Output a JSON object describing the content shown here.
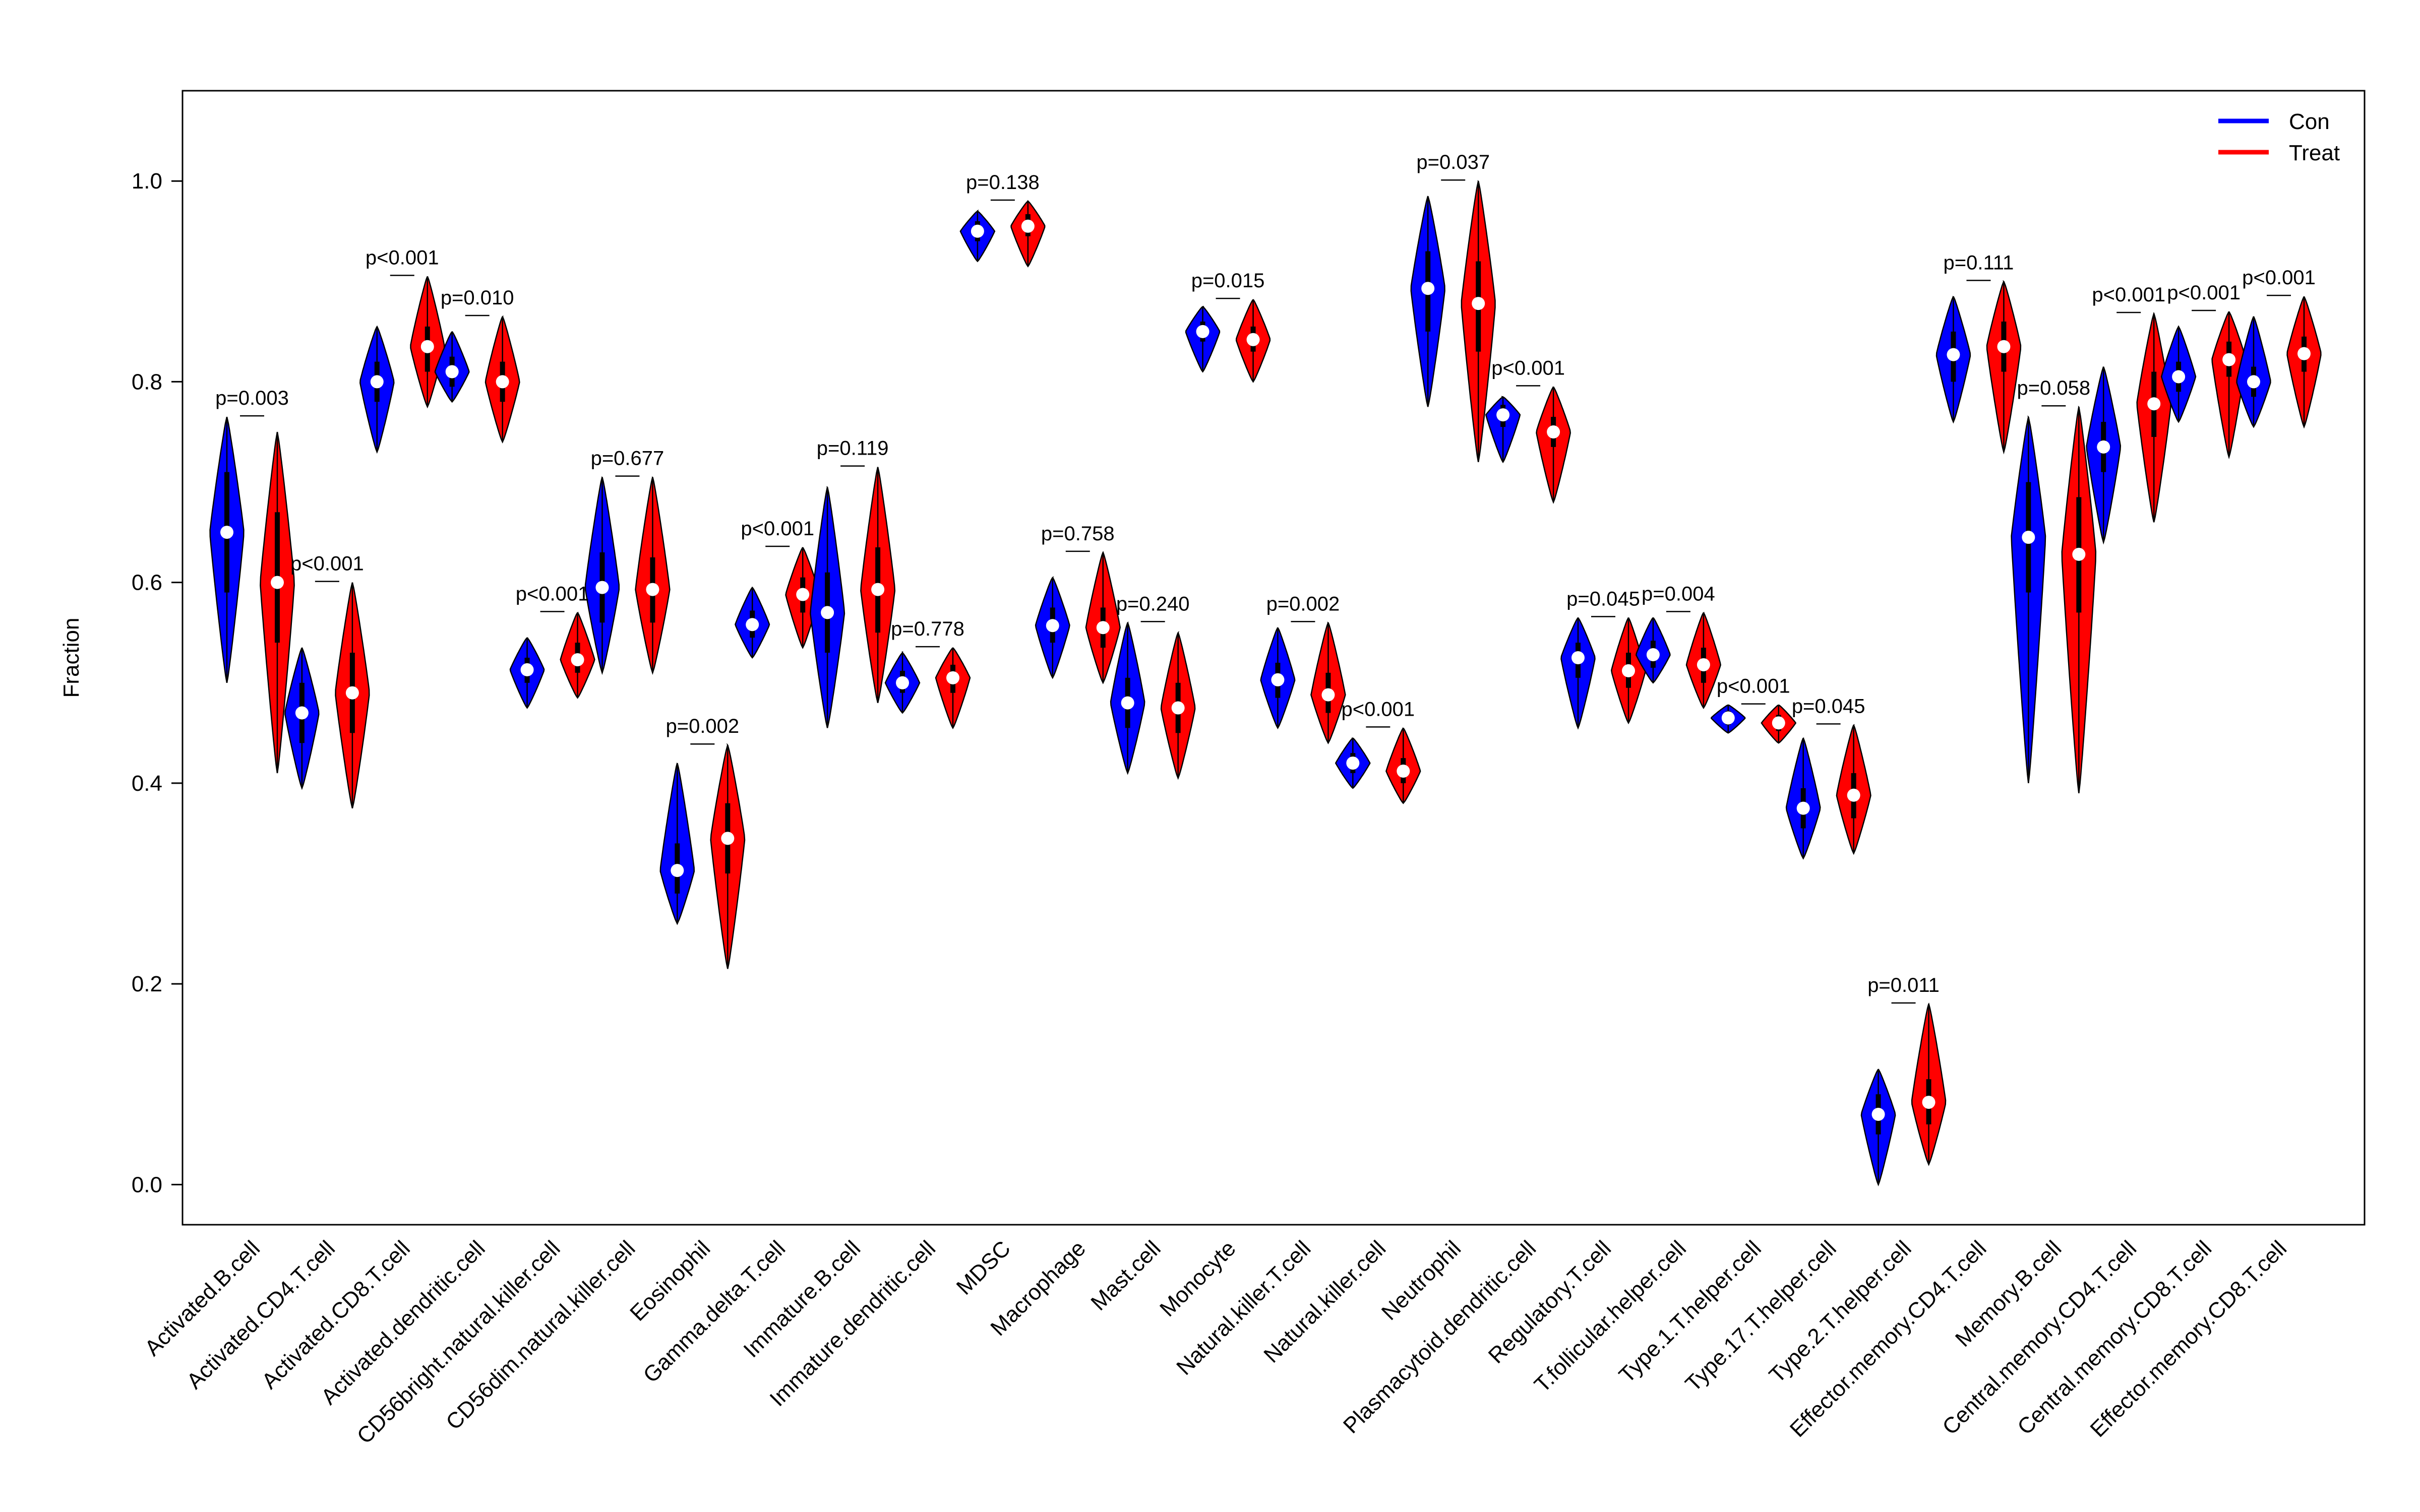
{
  "chart_data": {
    "type": "violin",
    "ylabel": "Fraction",
    "xlabel": "",
    "ylim": [
      -0.04,
      1.09
    ],
    "yticks": [
      0.0,
      0.2,
      0.4,
      0.6,
      0.8,
      1.0
    ],
    "ytick_labels": [
      "0.0",
      "0.2",
      "0.4",
      "0.6",
      "0.8",
      "1.0"
    ],
    "legend": {
      "position": "top-right",
      "entries": [
        {
          "name": "Con",
          "color": "#0000ff"
        },
        {
          "name": "Treat",
          "color": "#ff0000"
        }
      ]
    },
    "colors": {
      "con": "#0000ff",
      "treat": "#ff0000",
      "median": "#ffffff"
    },
    "categories": [
      {
        "label": "Activated.B.cell",
        "p": "p=0.003",
        "con": {
          "median": 0.65,
          "min": 0.5,
          "max": 0.765,
          "q1": 0.59,
          "q3": 0.71
        },
        "treat": {
          "median": 0.6,
          "min": 0.41,
          "max": 0.75,
          "q1": 0.54,
          "q3": 0.67
        }
      },
      {
        "label": "Activated.CD4.T.cell",
        "p": "p<0.001",
        "con": {
          "median": 0.47,
          "min": 0.395,
          "max": 0.535,
          "q1": 0.44,
          "q3": 0.5
        },
        "treat": {
          "median": 0.49,
          "min": 0.375,
          "max": 0.6,
          "q1": 0.45,
          "q3": 0.53
        }
      },
      {
        "label": "Activated.CD8.T.cell",
        "p": "p<0.001",
        "con": {
          "median": 0.8,
          "min": 0.73,
          "max": 0.855,
          "q1": 0.78,
          "q3": 0.82
        },
        "treat": {
          "median": 0.835,
          "min": 0.775,
          "max": 0.905,
          "q1": 0.81,
          "q3": 0.855
        }
      },
      {
        "label": "Activated.dendritic.cell",
        "p": "p=0.010",
        "con": {
          "median": 0.81,
          "min": 0.78,
          "max": 0.85,
          "q1": 0.795,
          "q3": 0.825
        },
        "treat": {
          "median": 0.8,
          "min": 0.74,
          "max": 0.865,
          "q1": 0.78,
          "q3": 0.82
        }
      },
      {
        "label": "CD56bright.natural.killer.cell",
        "p": "p<0.001",
        "con": {
          "median": 0.513,
          "min": 0.475,
          "max": 0.545,
          "q1": 0.5,
          "q3": 0.525
        },
        "treat": {
          "median": 0.523,
          "min": 0.485,
          "max": 0.57,
          "q1": 0.51,
          "q3": 0.54
        }
      },
      {
        "label": "CD56dim.natural.killer.cell",
        "p": "p=0.677",
        "con": {
          "median": 0.595,
          "min": 0.51,
          "max": 0.705,
          "q1": 0.56,
          "q3": 0.63
        },
        "treat": {
          "median": 0.593,
          "min": 0.51,
          "max": 0.705,
          "q1": 0.56,
          "q3": 0.625
        }
      },
      {
        "label": "Eosinophil",
        "p": "p=0.002",
        "con": {
          "median": 0.313,
          "min": 0.26,
          "max": 0.42,
          "q1": 0.29,
          "q3": 0.34
        },
        "treat": {
          "median": 0.345,
          "min": 0.215,
          "max": 0.438,
          "q1": 0.31,
          "q3": 0.38
        }
      },
      {
        "label": "Gamma.delta.T.cell",
        "p": "p<0.001",
        "con": {
          "median": 0.558,
          "min": 0.525,
          "max": 0.595,
          "q1": 0.545,
          "q3": 0.572
        },
        "treat": {
          "median": 0.588,
          "min": 0.535,
          "max": 0.635,
          "q1": 0.57,
          "q3": 0.605
        }
      },
      {
        "label": "Immature.B.cell",
        "p": "p=0.119",
        "con": {
          "median": 0.57,
          "min": 0.455,
          "max": 0.695,
          "q1": 0.53,
          "q3": 0.61
        },
        "treat": {
          "median": 0.593,
          "min": 0.48,
          "max": 0.715,
          "q1": 0.55,
          "q3": 0.635
        }
      },
      {
        "label": "Immature.dendritic.cell",
        "p": "p=0.778",
        "con": {
          "median": 0.5,
          "min": 0.47,
          "max": 0.53,
          "q1": 0.49,
          "q3": 0.512
        },
        "treat": {
          "median": 0.505,
          "min": 0.455,
          "max": 0.535,
          "q1": 0.49,
          "q3": 0.518
        }
      },
      {
        "label": "MDSC",
        "p": "p=0.138",
        "con": {
          "median": 0.95,
          "min": 0.92,
          "max": 0.97,
          "q1": 0.94,
          "q3": 0.96
        },
        "treat": {
          "median": 0.955,
          "min": 0.915,
          "max": 0.98,
          "q1": 0.945,
          "q3": 0.967
        }
      },
      {
        "label": "Macrophage",
        "p": "p=0.758",
        "con": {
          "median": 0.557,
          "min": 0.505,
          "max": 0.605,
          "q1": 0.54,
          "q3": 0.575
        },
        "treat": {
          "median": 0.555,
          "min": 0.5,
          "max": 0.63,
          "q1": 0.535,
          "q3": 0.575
        }
      },
      {
        "label": "Mast.cell",
        "p": "p=0.240",
        "con": {
          "median": 0.48,
          "min": 0.41,
          "max": 0.56,
          "q1": 0.455,
          "q3": 0.505
        },
        "treat": {
          "median": 0.475,
          "min": 0.405,
          "max": 0.55,
          "q1": 0.45,
          "q3": 0.5
        }
      },
      {
        "label": "Monocyte",
        "p": "p=0.015",
        "con": {
          "median": 0.85,
          "min": 0.81,
          "max": 0.875,
          "q1": 0.84,
          "q3": 0.86
        },
        "treat": {
          "median": 0.842,
          "min": 0.8,
          "max": 0.882,
          "q1": 0.83,
          "q3": 0.855
        }
      },
      {
        "label": "Natural.killer.T.cell",
        "p": "p=0.002",
        "con": {
          "median": 0.503,
          "min": 0.455,
          "max": 0.555,
          "q1": 0.485,
          "q3": 0.52
        },
        "treat": {
          "median": 0.488,
          "min": 0.44,
          "max": 0.56,
          "q1": 0.47,
          "q3": 0.51
        }
      },
      {
        "label": "Natural.killer.cell",
        "p": "p<0.001",
        "con": {
          "median": 0.42,
          "min": 0.395,
          "max": 0.445,
          "q1": 0.41,
          "q3": 0.43
        },
        "treat": {
          "median": 0.412,
          "min": 0.38,
          "max": 0.455,
          "q1": 0.4,
          "q3": 0.425
        }
      },
      {
        "label": "Neutrophil",
        "p": "p=0.037",
        "con": {
          "median": 0.893,
          "min": 0.775,
          "max": 0.985,
          "q1": 0.85,
          "q3": 0.93
        },
        "treat": {
          "median": 0.878,
          "min": 0.72,
          "max": 1.0,
          "q1": 0.83,
          "q3": 0.92
        }
      },
      {
        "label": "Plasmacytoid.dendritic.cell",
        "p": "p<0.001",
        "con": {
          "median": 0.767,
          "min": 0.72,
          "max": 0.785,
          "q1": 0.755,
          "q3": 0.777
        },
        "treat": {
          "median": 0.75,
          "min": 0.68,
          "max": 0.795,
          "q1": 0.735,
          "q3": 0.765
        }
      },
      {
        "label": "Regulatory.T.cell",
        "p": "p=0.045",
        "con": {
          "median": 0.525,
          "min": 0.455,
          "max": 0.565,
          "q1": 0.505,
          "q3": 0.54
        },
        "treat": {
          "median": 0.512,
          "min": 0.46,
          "max": 0.565,
          "q1": 0.495,
          "q3": 0.53
        }
      },
      {
        "label": "T.follicular.helper.cell",
        "p": "p=0.004",
        "con": {
          "median": 0.528,
          "min": 0.5,
          "max": 0.565,
          "q1": 0.515,
          "q3": 0.542
        },
        "treat": {
          "median": 0.518,
          "min": 0.475,
          "max": 0.57,
          "q1": 0.5,
          "q3": 0.535
        }
      },
      {
        "label": "Type.1.T.helper.cell",
        "p": "p<0.001",
        "con": {
          "median": 0.465,
          "min": 0.45,
          "max": 0.478,
          "q1": 0.458,
          "q3": 0.472
        },
        "treat": {
          "median": 0.46,
          "min": 0.44,
          "max": 0.478,
          "q1": 0.452,
          "q3": 0.468
        }
      },
      {
        "label": "Type.17.T.helper.cell",
        "p": "p=0.045",
        "con": {
          "median": 0.375,
          "min": 0.325,
          "max": 0.445,
          "q1": 0.355,
          "q3": 0.395
        },
        "treat": {
          "median": 0.388,
          "min": 0.33,
          "max": 0.458,
          "q1": 0.365,
          "q3": 0.41
        }
      },
      {
        "label": "Type.2.T.helper.cell",
        "p": "p=0.011",
        "con": {
          "median": 0.07,
          "min": 0.0,
          "max": 0.115,
          "q1": 0.05,
          "q3": 0.09
        },
        "treat": {
          "median": 0.082,
          "min": 0.02,
          "max": 0.18,
          "q1": 0.06,
          "q3": 0.105
        }
      },
      {
        "label": "Effector.memory.CD4.T.cell",
        "p": "p=0.111",
        "con": {
          "median": 0.827,
          "min": 0.76,
          "max": 0.885,
          "q1": 0.8,
          "q3": 0.85
        },
        "treat": {
          "median": 0.835,
          "min": 0.73,
          "max": 0.9,
          "q1": 0.81,
          "q3": 0.86
        }
      },
      {
        "label": "Memory.B.cell",
        "p": "p=0.058",
        "con": {
          "median": 0.645,
          "min": 0.4,
          "max": 0.765,
          "q1": 0.59,
          "q3": 0.7
        },
        "treat": {
          "median": 0.628,
          "min": 0.39,
          "max": 0.775,
          "q1": 0.57,
          "q3": 0.685
        }
      },
      {
        "label": "Central.memory.CD4.T.cell",
        "p": "p<0.001",
        "con": {
          "median": 0.735,
          "min": 0.64,
          "max": 0.815,
          "q1": 0.71,
          "q3": 0.76
        },
        "treat": {
          "median": 0.778,
          "min": 0.66,
          "max": 0.868,
          "q1": 0.745,
          "q3": 0.81
        }
      },
      {
        "label": "Central.memory.CD8.T.cell",
        "p": "p<0.001",
        "con": {
          "median": 0.805,
          "min": 0.76,
          "max": 0.855,
          "q1": 0.79,
          "q3": 0.82
        },
        "treat": {
          "median": 0.822,
          "min": 0.725,
          "max": 0.87,
          "q1": 0.805,
          "q3": 0.84
        }
      },
      {
        "label": "Effector.memory.CD8.T.cell",
        "p": "p<0.001",
        "con": {
          "median": 0.8,
          "min": 0.755,
          "max": 0.865,
          "q1": 0.785,
          "q3": 0.815
        },
        "treat": {
          "median": 0.828,
          "min": 0.755,
          "max": 0.885,
          "q1": 0.81,
          "q3": 0.845
        }
      }
    ]
  }
}
